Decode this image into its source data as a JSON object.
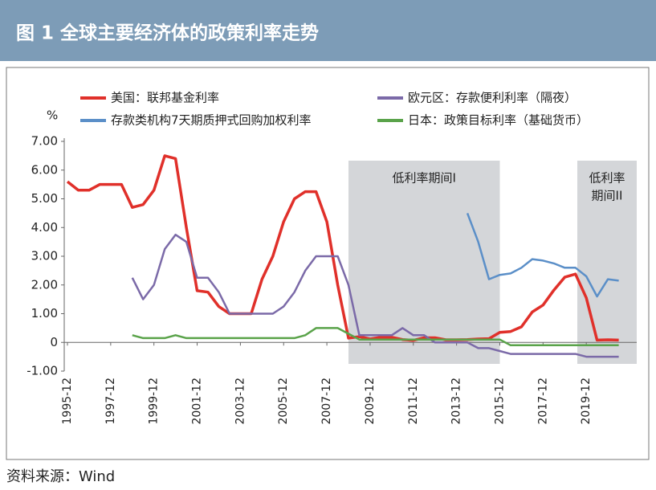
{
  "chart_data": {
    "type": "line",
    "title": "图 1   全球主要经济体的政策利率走势",
    "y_unit": "%",
    "source": "资料来源：Wind",
    "x": [
      "1995-12",
      "1996-06",
      "1996-12",
      "1997-06",
      "1997-12",
      "1998-06",
      "1998-12",
      "1999-06",
      "1999-12",
      "2000-06",
      "2000-12",
      "2001-06",
      "2001-12",
      "2002-06",
      "2002-12",
      "2003-06",
      "2003-12",
      "2004-06",
      "2004-12",
      "2005-06",
      "2005-12",
      "2006-06",
      "2006-12",
      "2007-06",
      "2007-12",
      "2008-06",
      "2008-12",
      "2009-06",
      "2009-12",
      "2010-06",
      "2010-12",
      "2011-06",
      "2011-12",
      "2012-06",
      "2012-12",
      "2013-06",
      "2013-12",
      "2014-06",
      "2014-12",
      "2015-06",
      "2015-12",
      "2016-06",
      "2016-12",
      "2017-06",
      "2017-12",
      "2018-06",
      "2018-12",
      "2019-06",
      "2019-12",
      "2020-06",
      "2020-12",
      "2021-06"
    ],
    "series": [
      {
        "name": "美国：联邦基金利率",
        "color": "#e0302a",
        "values": [
          5.6,
          5.3,
          5.3,
          5.5,
          5.5,
          5.5,
          4.7,
          4.8,
          5.3,
          6.5,
          6.4,
          4.0,
          1.8,
          1.75,
          1.25,
          1.0,
          1.0,
          1.0,
          2.2,
          3.0,
          4.2,
          5.0,
          5.25,
          5.25,
          4.2,
          2.0,
          0.15,
          0.2,
          0.12,
          0.18,
          0.18,
          0.1,
          0.07,
          0.16,
          0.16,
          0.09,
          0.09,
          0.1,
          0.12,
          0.13,
          0.35,
          0.38,
          0.54,
          1.06,
          1.3,
          1.82,
          2.27,
          2.38,
          1.55,
          0.08,
          0.09,
          0.08
        ]
      },
      {
        "name": "欧元区：存款便利利率（隔夜）",
        "color": "#7b6aa8",
        "values": [
          null,
          null,
          null,
          null,
          null,
          null,
          2.25,
          1.5,
          2.0,
          3.25,
          3.75,
          3.5,
          2.25,
          2.25,
          1.75,
          1.0,
          1.0,
          1.0,
          1.0,
          1.0,
          1.25,
          1.75,
          2.5,
          3.0,
          3.0,
          3.0,
          2.0,
          0.25,
          0.25,
          0.25,
          0.25,
          0.5,
          0.25,
          0.25,
          0,
          0,
          0,
          0,
          -0.2,
          -0.2,
          -0.3,
          -0.4,
          -0.4,
          -0.4,
          -0.4,
          -0.4,
          -0.4,
          -0.4,
          -0.5,
          -0.5,
          -0.5,
          -0.5
        ]
      },
      {
        "name": "存款类机构7天期质押式回购加权利率",
        "color": "#5b8fc8",
        "values": [
          null,
          null,
          null,
          null,
          null,
          null,
          null,
          null,
          null,
          null,
          null,
          null,
          null,
          null,
          null,
          null,
          null,
          null,
          null,
          null,
          null,
          null,
          null,
          null,
          null,
          null,
          null,
          null,
          null,
          null,
          null,
          null,
          null,
          null,
          null,
          null,
          null,
          4.5,
          3.5,
          2.2,
          2.35,
          2.4,
          2.6,
          2.9,
          2.85,
          2.75,
          2.6,
          2.6,
          2.3,
          1.6,
          2.2,
          2.15
        ]
      },
      {
        "name": "日本：政策目标利率（基础货币）",
        "color": "#5aa34a",
        "values": [
          null,
          null,
          null,
          null,
          null,
          null,
          0.25,
          0.15,
          0.15,
          0.15,
          0.25,
          0.15,
          0.15,
          0.15,
          0.15,
          0.15,
          0.15,
          0.15,
          0.15,
          0.15,
          0.15,
          0.15,
          0.25,
          0.5,
          0.5,
          0.5,
          0.3,
          0.1,
          0.1,
          0.1,
          0.1,
          0.1,
          0.1,
          0.1,
          0.1,
          0.1,
          0.1,
          0.1,
          0.1,
          0.1,
          0.1,
          -0.1,
          -0.1,
          -0.1,
          -0.1,
          -0.1,
          -0.1,
          -0.1,
          -0.1,
          -0.1,
          -0.1,
          -0.1
        ]
      }
    ],
    "shaded": [
      {
        "start": "2008-12",
        "end": "2015-12",
        "label": [
          "低利率期间I"
        ]
      },
      {
        "start": "2019-07",
        "end": "2022-04",
        "label": [
          "低利率",
          "期间II"
        ]
      }
    ],
    "xlim": [
      "1995-12",
      "2022-04"
    ],
    "xticks": [
      "1995-12",
      "1997-12",
      "1999-12",
      "2001-12",
      "2003-12",
      "2005-12",
      "2007-12",
      "2009-12",
      "2011-12",
      "2013-12",
      "2015-12",
      "2017-12",
      "2019-12"
    ],
    "ylim": [
      -1,
      7
    ],
    "yticks": [
      {
        "value": -1,
        "label": "-1.00"
      },
      {
        "value": 0,
        "label": "0"
      },
      {
        "value": 1,
        "label": "1.00"
      },
      {
        "value": 2,
        "label": "2.00"
      },
      {
        "value": 3,
        "label": "3.00"
      },
      {
        "value": 4,
        "label": "4.00"
      },
      {
        "value": 5,
        "label": "5.00"
      },
      {
        "value": 6,
        "label": "6.00"
      },
      {
        "value": 7,
        "label": "7.00"
      }
    ]
  }
}
